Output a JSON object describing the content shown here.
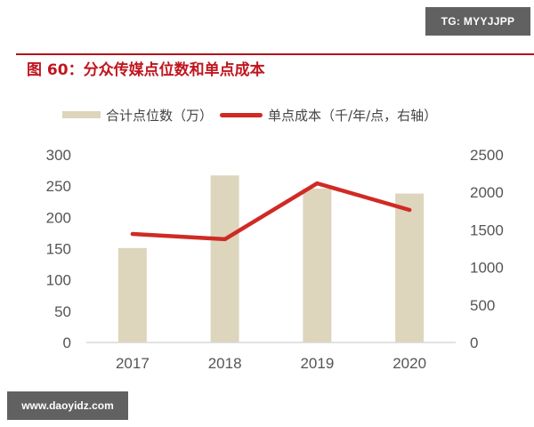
{
  "badge": {
    "text": "TG: MYYJJPP"
  },
  "figure": {
    "title": "图 60：分众传媒点位数和单点成本"
  },
  "legend": {
    "bar_label": "合计点位数（万）",
    "line_label": "单点成本（千/年/点，右轴）"
  },
  "watermark": {
    "text": "www.daoyidz.com"
  },
  "colors": {
    "bar": "#ddd5bc",
    "line": "#d02a25",
    "title": "#c0161e",
    "badge_bg": "#616161"
  },
  "chart_data": {
    "type": "bar",
    "title": "图 60：分众传媒点位数和单点成本",
    "categories": [
      "2017",
      "2018",
      "2019",
      "2020"
    ],
    "series": [
      {
        "name": "合计点位数（万）",
        "type": "bar",
        "axis": "left",
        "values": [
          151,
          267,
          246,
          238
        ]
      },
      {
        "name": "单点成本（千/年/点，右轴）",
        "type": "line",
        "axis": "right",
        "values": [
          1445,
          1375,
          2120,
          1765
        ]
      }
    ],
    "y_left": {
      "ticks": [
        "0",
        "50",
        "100",
        "150",
        "200",
        "250",
        "300"
      ],
      "range": [
        0,
        300
      ]
    },
    "y_right": {
      "ticks": [
        "0",
        "500",
        "1000",
        "1500",
        "2000",
        "2500"
      ],
      "range": [
        0,
        2500
      ]
    },
    "xlabel": "",
    "ylabel": "",
    "grid": false,
    "legend_position": "top"
  }
}
